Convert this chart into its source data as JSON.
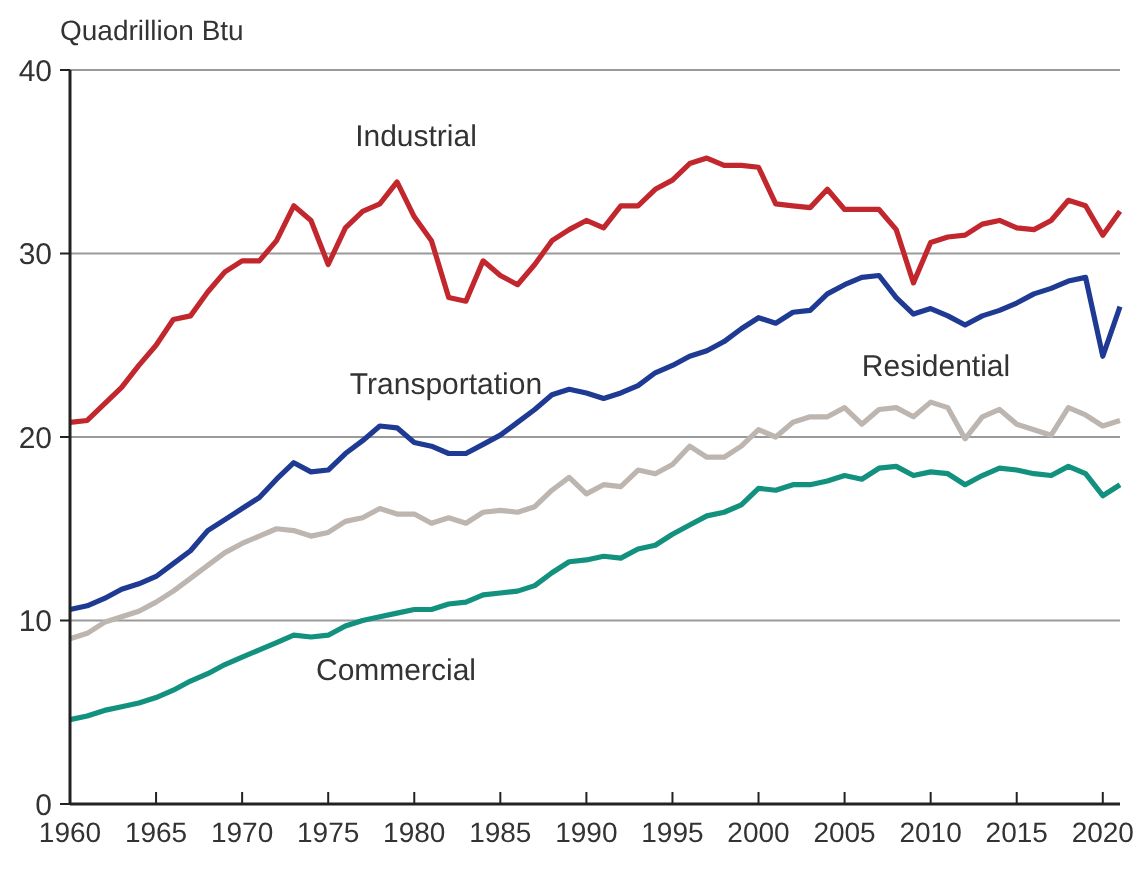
{
  "chart_data": {
    "type": "line",
    "ylabel": "Quadrillion Btu",
    "x": [
      1960,
      1961,
      1962,
      1963,
      1964,
      1965,
      1966,
      1967,
      1968,
      1969,
      1970,
      1971,
      1972,
      1973,
      1974,
      1975,
      1976,
      1977,
      1978,
      1979,
      1980,
      1981,
      1982,
      1983,
      1984,
      1985,
      1986,
      1987,
      1988,
      1989,
      1990,
      1991,
      1992,
      1993,
      1994,
      1995,
      1996,
      1997,
      1998,
      1999,
      2000,
      2001,
      2002,
      2003,
      2004,
      2005,
      2006,
      2007,
      2008,
      2009,
      2010,
      2011,
      2012,
      2013,
      2014,
      2015,
      2016,
      2017,
      2018,
      2019,
      2020,
      2021
    ],
    "series": [
      {
        "name": "Industrial",
        "color": "#c1272d",
        "values": [
          20.8,
          20.9,
          21.8,
          22.7,
          23.9,
          25.0,
          26.4,
          26.6,
          27.9,
          29.0,
          29.6,
          29.6,
          30.7,
          32.6,
          31.8,
          29.4,
          31.4,
          32.3,
          32.7,
          33.9,
          32.0,
          30.7,
          27.6,
          27.4,
          29.6,
          28.8,
          28.3,
          29.4,
          30.7,
          31.3,
          31.8,
          31.4,
          32.6,
          32.6,
          33.5,
          34.0,
          34.9,
          35.2,
          34.8,
          34.8,
          34.7,
          32.7,
          32.6,
          32.5,
          33.5,
          32.4,
          32.4,
          32.4,
          31.3,
          28.4,
          30.6,
          30.9,
          31.0,
          31.6,
          31.8,
          31.4,
          31.3,
          31.8,
          32.9,
          32.6,
          31.0,
          32.3
        ]
      },
      {
        "name": "Transportation",
        "color": "#1f3a93",
        "values": [
          10.6,
          10.8,
          11.2,
          11.7,
          12.0,
          12.4,
          13.1,
          13.8,
          14.9,
          15.5,
          16.1,
          16.7,
          17.7,
          18.6,
          18.1,
          18.2,
          19.1,
          19.8,
          20.6,
          20.5,
          19.7,
          19.5,
          19.1,
          19.1,
          19.6,
          20.1,
          20.8,
          21.5,
          22.3,
          22.6,
          22.4,
          22.1,
          22.4,
          22.8,
          23.5,
          23.9,
          24.4,
          24.7,
          25.2,
          25.9,
          26.5,
          26.2,
          26.8,
          26.9,
          27.8,
          28.3,
          28.7,
          28.8,
          27.6,
          26.7,
          27.0,
          26.6,
          26.1,
          26.6,
          26.9,
          27.3,
          27.8,
          28.1,
          28.5,
          28.7,
          24.4,
          27.1
        ]
      },
      {
        "name": "Residential",
        "color": "#bdb5b0",
        "values": [
          9.0,
          9.3,
          9.9,
          10.2,
          10.5,
          11.0,
          11.6,
          12.3,
          13.0,
          13.7,
          14.2,
          14.6,
          15.0,
          14.9,
          14.6,
          14.8,
          15.4,
          15.6,
          16.1,
          15.8,
          15.8,
          15.3,
          15.6,
          15.3,
          15.9,
          16.0,
          15.9,
          16.2,
          17.1,
          17.8,
          16.9,
          17.4,
          17.3,
          18.2,
          18.0,
          18.5,
          19.5,
          18.9,
          18.9,
          19.5,
          20.4,
          20.0,
          20.8,
          21.1,
          21.1,
          21.6,
          20.7,
          21.5,
          21.6,
          21.1,
          21.9,
          21.6,
          19.9,
          21.1,
          21.5,
          20.7,
          20.4,
          20.1,
          21.6,
          21.2,
          20.6,
          20.9
        ]
      },
      {
        "name": "Commercial",
        "color": "#13917f",
        "values": [
          4.6,
          4.8,
          5.1,
          5.3,
          5.5,
          5.8,
          6.2,
          6.7,
          7.1,
          7.6,
          8.0,
          8.4,
          8.8,
          9.2,
          9.1,
          9.2,
          9.7,
          10.0,
          10.2,
          10.4,
          10.6,
          10.6,
          10.9,
          11.0,
          11.4,
          11.5,
          11.6,
          11.9,
          12.6,
          13.2,
          13.3,
          13.5,
          13.4,
          13.9,
          14.1,
          14.7,
          15.2,
          15.7,
          15.9,
          16.3,
          17.2,
          17.1,
          17.4,
          17.4,
          17.6,
          17.9,
          17.7,
          18.3,
          18.4,
          17.9,
          18.1,
          18.0,
          17.4,
          17.9,
          18.3,
          18.2,
          18.0,
          17.9,
          18.4,
          18.0,
          16.8,
          17.4
        ]
      }
    ],
    "xlim": [
      1960,
      2021
    ],
    "xticks": [
      1960,
      1965,
      1970,
      1975,
      1980,
      1985,
      1990,
      1995,
      2000,
      2005,
      2010,
      2015,
      2020
    ],
    "ylim": [
      0,
      40
    ],
    "yticks": [
      0,
      10,
      20,
      30,
      40
    ],
    "grid": "y",
    "marker": "none",
    "line_style": "solid"
  }
}
